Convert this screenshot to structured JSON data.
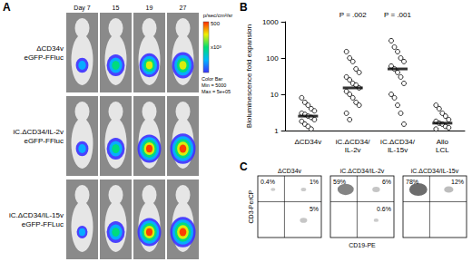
{
  "panel_a": {
    "label": "A",
    "columns": [
      "Day 7",
      "15",
      "19",
      "27"
    ],
    "rows": [
      {
        "label": [
          "ΔCD34v",
          "eGFP-FFluc"
        ],
        "signal": [
          150,
          300,
          350,
          400
        ]
      },
      {
        "label": [
          "iC.ΔCD34/IL-2v",
          "eGFP-FFluc"
        ],
        "signal": [
          150,
          300,
          450,
          500
        ]
      },
      {
        "label": [
          "iC.ΔCD34/IL-15v",
          "eGFP-FFLuc"
        ],
        "signal": [
          100,
          300,
          450,
          500
        ]
      }
    ],
    "color_bar": {
      "title": "p/sec/cm²/sr",
      "scale": "x10³",
      "range": [
        5,
        500
      ],
      "ticks": [
        500
      ],
      "notes": [
        "Color Bar",
        "Min = 5000",
        "Max = 5e+05"
      ]
    }
  },
  "chart_data": {
    "type": "scatter",
    "label": "B",
    "categories": [
      "ΔCD34v",
      "iC.ΔCD34/\nIL-2v",
      "iC.ΔCD34/\nIL-15v",
      "Allo\nLCL"
    ],
    "values": [
      [
        8,
        6,
        5,
        4,
        3.5,
        3,
        2.8,
        2.5,
        2.3,
        2,
        1.8,
        1.5,
        1.3,
        1.1
      ],
      [
        150,
        100,
        80,
        50,
        40,
        30,
        25,
        20,
        18,
        15,
        12,
        10,
        8,
        6,
        5,
        3,
        2
      ],
      [
        300,
        200,
        150,
        100,
        80,
        60,
        50,
        40,
        30,
        20,
        10,
        8,
        5,
        3,
        1.5
      ],
      [
        5,
        4,
        3,
        2.5,
        2,
        1.8,
        1.6,
        1.5,
        1.3,
        1.2,
        1.1
      ]
    ],
    "medians": [
      2.5,
      15,
      50,
      1.6
    ],
    "ylabel": "Bioluminescence fold expansion",
    "ylim": [
      1,
      1000
    ],
    "yticks": [
      1,
      10,
      100,
      1000
    ],
    "log": "y",
    "grid": false,
    "marker": "circle",
    "color": "#000000",
    "annotations": [
      {
        "category_index": 1,
        "text": "P = .002"
      },
      {
        "category_index": 2,
        "text": "P = .001"
      }
    ]
  },
  "panel_c": {
    "label": "C",
    "x_label": "CD19-PE",
    "y_label": "CD3-PerCP",
    "plots": [
      {
        "title": "ΔCD34v",
        "quadrants": {
          "upper_left": {
            "value": 0.4,
            "label": "0.4%"
          },
          "upper_right": {
            "value": 1,
            "label": "1%"
          },
          "lower_right": {
            "value": 5,
            "label": "5%"
          }
        }
      },
      {
        "title": "iC.ΔCD34/IL-2v",
        "quadrants": {
          "upper_left": {
            "value": 59,
            "label": "59%"
          },
          "upper_right": {
            "value": 6,
            "label": "6%"
          },
          "lower_right": {
            "value": 0.6,
            "label": "0.6%"
          }
        }
      },
      {
        "title": "iC.ΔCD34/IL-15v",
        "quadrants": {
          "upper_left": {
            "value": 78,
            "label": "78%"
          },
          "upper_right": {
            "value": 12,
            "label": "12%"
          }
        }
      }
    ]
  }
}
